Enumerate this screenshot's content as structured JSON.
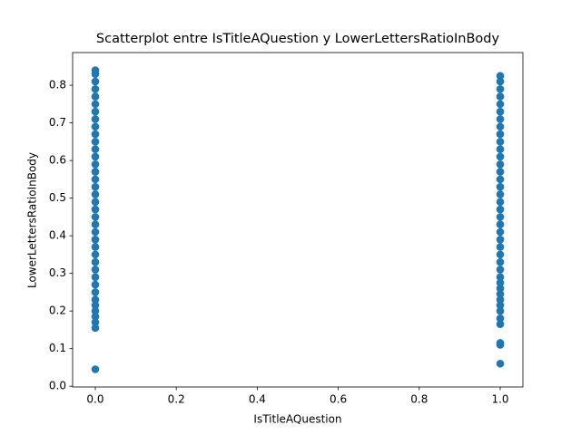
{
  "chart_data": {
    "type": "scatter",
    "title": "Scatterplot entre IsTitleAQuestion y LowerLettersRatioInBody",
    "x_label": "IsTitleAQuestion",
    "y_label": "LowerLettersRatioInBody",
    "color": "#1f77b4",
    "x": [
      0,
      0,
      0,
      0,
      0,
      0,
      0,
      0,
      0,
      0,
      0,
      0,
      0,
      0,
      0,
      0,
      0,
      0,
      0,
      0,
      0,
      0,
      0,
      0,
      0,
      0,
      0,
      0,
      0,
      0,
      0,
      0,
      0,
      0,
      0,
      0,
      0,
      0,
      1,
      1,
      1,
      1,
      1,
      1,
      1,
      1,
      1,
      1,
      1,
      1,
      1,
      1,
      1,
      1,
      1,
      1,
      1,
      1,
      1,
      1,
      1,
      1,
      1,
      1,
      1,
      1,
      1,
      1,
      1,
      1,
      1,
      1,
      1,
      1,
      1,
      1,
      1
    ],
    "values": [
      0.045,
      0.155,
      0.17,
      0.185,
      0.2,
      0.215,
      0.23,
      0.25,
      0.27,
      0.29,
      0.31,
      0.33,
      0.35,
      0.37,
      0.39,
      0.41,
      0.43,
      0.45,
      0.47,
      0.49,
      0.51,
      0.53,
      0.55,
      0.57,
      0.59,
      0.61,
      0.63,
      0.65,
      0.67,
      0.69,
      0.71,
      0.73,
      0.75,
      0.77,
      0.79,
      0.81,
      0.83,
      0.84,
      0.06,
      0.11,
      0.115,
      0.165,
      0.18,
      0.2,
      0.215,
      0.23,
      0.245,
      0.26,
      0.275,
      0.29,
      0.31,
      0.33,
      0.35,
      0.37,
      0.39,
      0.41,
      0.43,
      0.45,
      0.47,
      0.49,
      0.51,
      0.53,
      0.55,
      0.57,
      0.59,
      0.61,
      0.63,
      0.65,
      0.67,
      0.69,
      0.71,
      0.73,
      0.75,
      0.77,
      0.79,
      0.81,
      0.825
    ],
    "xlim": [
      -0.056,
      1.056
    ],
    "ylim": [
      -0.002,
      0.887
    ],
    "xticks": [
      {
        "value": 0,
        "label": "0.0"
      },
      0.2,
      0.4,
      0.6,
      0.8,
      {
        "value": 1,
        "label": "1.0"
      }
    ],
    "yticks": [
      {
        "value": 0,
        "label": "0.0"
      },
      0.1,
      0.2,
      0.3,
      0.4,
      0.5,
      0.6,
      0.7,
      0.8
    ]
  }
}
